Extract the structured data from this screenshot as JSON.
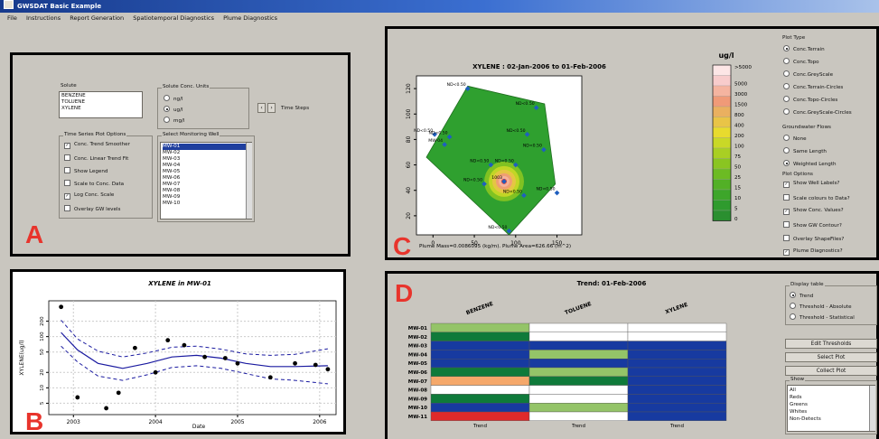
{
  "window": {
    "title": "GWSDAT Basic Example"
  },
  "menu": [
    "File",
    "Instructions",
    "Report Generation",
    "Spatiotemporal Diagnostics",
    "Plume Diagnostics"
  ],
  "panel_letters": {
    "a": "A",
    "b": "B",
    "c": "C",
    "d": "D"
  },
  "panelA": {
    "solute_caption": "Solute",
    "solutes": [
      "BENZENE",
      "TOLUENE",
      "XYLENE"
    ],
    "units_caption": "Solute Conc. Units",
    "units": [
      "ng/l",
      "ug/l",
      "mg/l"
    ],
    "selected_unit": "ug/l",
    "time_steps_label": "Time Steps",
    "ts_caption": "Time Series Plot Options",
    "ts_options": [
      {
        "label": "Conc. Trend Smoother",
        "checked": true
      },
      {
        "label": "Conc. Linear Trend Fit",
        "checked": false
      },
      {
        "label": "Show Legend",
        "checked": false
      },
      {
        "label": "Scale to Conc. Data",
        "checked": false
      },
      {
        "label": "Log Conc. Scale",
        "checked": true
      },
      {
        "label": "Overlay GW levels",
        "checked": false
      }
    ],
    "wells_caption": "Select Monitoring Well",
    "wells": [
      "MW-01",
      "MW-02",
      "MW-03",
      "MW-04",
      "MW-05",
      "MW-06",
      "MW-07",
      "MW-08",
      "MW-09",
      "MW-10"
    ],
    "selected_well": "MW-01"
  },
  "panelB": {
    "title": "XYLENE in MW-01",
    "xlabel": "Date",
    "ylabel": "XYLENE(ug/l)"
  },
  "panelC": {
    "title": "XYLENE : 02-Jan-2006 to 01-Feb-2006",
    "footer": "Plume Mass=0.0086095 (kg/m).  Plume Area=626.66 (m^2)",
    "legend_unit": "ug/l",
    "plot_type_caption": "Plot Type",
    "plot_types": [
      "Conc.Terrain",
      "Conc.Topo",
      "Conc.GreyScale",
      "Conc.Terrain-Circles",
      "Conc.Topo-Circles",
      "Conc.GreyScale-Circles"
    ],
    "selected_plot_type": "Conc.Terrain",
    "gw_caption": "Groundwater Flows",
    "gw_options": [
      "None",
      "Same Length",
      "Weighted Length"
    ],
    "selected_gw": "Weighted Length",
    "plot_opts_caption": "Plot Options",
    "plot_options": [
      {
        "label": "Show Well Labels?",
        "checked": true
      },
      {
        "label": "Scale colours to Data?",
        "checked": false
      },
      {
        "label": "Show Conc. Values?",
        "checked": true
      },
      {
        "label": "Show GW Contour?",
        "checked": false
      },
      {
        "label": "Overlay ShapeFiles?",
        "checked": false
      },
      {
        "label": "Plume Diagnostics?",
        "checked": true
      }
    ]
  },
  "panelD": {
    "title": "Trend: 01-Feb-2006",
    "display_caption": "Display table",
    "display_options": [
      "Trend",
      "Threshold - Absolute",
      "Threshold - Statistical"
    ],
    "selected_display": "Trend",
    "buttons": [
      "Edit Thresholds",
      "Select Plot",
      "Collect Plot"
    ],
    "show_caption": "Show",
    "show_items": [
      "All",
      "Reds",
      "Greens",
      "Whites",
      "Non-Detects"
    ]
  },
  "colors": {
    "accent_letter": "#e8342c",
    "plot_line": "#1a1aa0",
    "well_marker": "#1f5fbf",
    "plume_green": "#2fa02f"
  },
  "chart_data": [
    {
      "type": "scatter",
      "title": "XYLENE in MW-01",
      "xlabel": "Date",
      "ylabel": "XYLENE(ug/l)",
      "log_y": true,
      "xlim": [
        2002.7,
        2006.2
      ],
      "ylim": [
        3,
        500
      ],
      "x_ticks": [
        "2003",
        "2004",
        "2005",
        "2006"
      ],
      "y_ticks": [
        "5",
        "10",
        "20",
        "50",
        "100",
        "200"
      ],
      "points": [
        [
          2002.85,
          380
        ],
        [
          2003.05,
          6.5
        ],
        [
          2003.4,
          4
        ],
        [
          2003.55,
          8
        ],
        [
          2003.75,
          60
        ],
        [
          2004.0,
          20
        ],
        [
          2004.15,
          85
        ],
        [
          2004.35,
          68
        ],
        [
          2004.6,
          40
        ],
        [
          2004.85,
          38
        ],
        [
          2005.0,
          30
        ],
        [
          2005.4,
          16
        ],
        [
          2005.7,
          30
        ],
        [
          2005.95,
          28
        ],
        [
          2006.1,
          23
        ]
      ],
      "smoother": [
        [
          2002.85,
          120
        ],
        [
          2003.05,
          55
        ],
        [
          2003.3,
          30
        ],
        [
          2003.6,
          24
        ],
        [
          2003.9,
          30
        ],
        [
          2004.2,
          40
        ],
        [
          2004.5,
          43
        ],
        [
          2004.8,
          38
        ],
        [
          2005.1,
          30
        ],
        [
          2005.4,
          26
        ],
        [
          2005.7,
          26
        ],
        [
          2006.1,
          27
        ]
      ],
      "upper_band": [
        [
          2002.85,
          210
        ],
        [
          2003.05,
          90
        ],
        [
          2003.3,
          52
        ],
        [
          2003.6,
          40
        ],
        [
          2003.9,
          48
        ],
        [
          2004.2,
          62
        ],
        [
          2004.5,
          65
        ],
        [
          2004.8,
          57
        ],
        [
          2005.1,
          46
        ],
        [
          2005.4,
          43
        ],
        [
          2005.7,
          45
        ],
        [
          2006.1,
          58
        ]
      ],
      "lower_band": [
        [
          2002.85,
          65
        ],
        [
          2003.05,
          32
        ],
        [
          2003.3,
          17
        ],
        [
          2003.6,
          14
        ],
        [
          2003.9,
          18
        ],
        [
          2004.2,
          25
        ],
        [
          2004.5,
          27
        ],
        [
          2004.8,
          24
        ],
        [
          2005.1,
          19
        ],
        [
          2005.4,
          15
        ],
        [
          2005.7,
          14
        ],
        [
          2006.1,
          12
        ]
      ]
    },
    {
      "type": "heatmap",
      "title": "XYLENE : 02-Jan-2006 to 01-Feb-2006",
      "xlim": [
        -20,
        180
      ],
      "ylim": [
        5,
        130
      ],
      "x_ticks": [
        "0",
        "50",
        "100",
        "150"
      ],
      "y_ticks": [
        "20",
        "40",
        "60",
        "80",
        "100",
        "120"
      ],
      "legend_unit": "ug/l",
      "legend_levels": [
        ">5000",
        "5000",
        "3000",
        "1500",
        "800",
        "400",
        "200",
        "100",
        "75",
        "50",
        "25",
        "15",
        "10",
        "5",
        "0"
      ],
      "legend_colors": [
        "#fde6e6",
        "#f8cccc",
        "#f5b4a0",
        "#f09a78",
        "#eab060",
        "#e9c447",
        "#e8db2e",
        "#c9d827",
        "#a9cf23",
        "#8ac521",
        "#6cbb23",
        "#52b026",
        "#3da62a",
        "#2f9b2e",
        "#2a8f30"
      ],
      "plume_polygon": [
        [
          42,
          122
        ],
        [
          135,
          108
        ],
        [
          148,
          45
        ],
        [
          92,
          5
        ],
        [
          -8,
          66
        ]
      ],
      "wells": [
        {
          "x": 42,
          "y": 120,
          "label": "ND<0.50"
        },
        {
          "x": 125,
          "y": 105,
          "label": "ND<0.50"
        },
        {
          "x": 2,
          "y": 84,
          "label": "ND<0.50"
        },
        {
          "x": 20,
          "y": 82,
          "label": "ND<0.50"
        },
        {
          "x": 14,
          "y": 76,
          "label": "MW-04"
        },
        {
          "x": 114,
          "y": 84,
          "label": "ND<0.50"
        },
        {
          "x": 134,
          "y": 72,
          "label": "ND<0.50"
        },
        {
          "x": 70,
          "y": 60,
          "label": "ND<0.50"
        },
        {
          "x": 100,
          "y": 60,
          "label": "ND<0.50"
        },
        {
          "x": 86,
          "y": 47,
          "label": "1003"
        },
        {
          "x": 62,
          "y": 45,
          "label": "ND<0.50"
        },
        {
          "x": 110,
          "y": 36,
          "label": "ND<0.50"
        },
        {
          "x": 150,
          "y": 38,
          "label": "ND<0.50"
        },
        {
          "x": 92,
          "y": 8,
          "label": "ND<0.50"
        }
      ]
    },
    {
      "type": "table",
      "title": "Trend: 01-Feb-2006",
      "columns": [
        "BENZENE",
        "TOLUENE",
        "XYLENE"
      ],
      "rows": [
        "MW-01",
        "MW-02",
        "MW-03",
        "MW-04",
        "MW-05",
        "MW-06",
        "MW-07",
        "MW-08",
        "MW-09",
        "MW-10",
        "MW-11"
      ],
      "footer": [
        "Trend",
        "Trend",
        "Trend"
      ],
      "cells": [
        [
          "#94c468",
          "#ffffff",
          "#ffffff"
        ],
        [
          "#0f7a3a",
          "#ffffff",
          "#ffffff"
        ],
        [
          "#173aa0",
          "#173aa0",
          "#173aa0"
        ],
        [
          "#173aa0",
          "#94c468",
          "#173aa0"
        ],
        [
          "#173aa0",
          "#173aa0",
          "#173aa0"
        ],
        [
          "#0f7a3a",
          "#94c468",
          "#173aa0"
        ],
        [
          "#f5a86a",
          "#0f7a3a",
          "#173aa0"
        ],
        [
          "#ffffff",
          "#ffffff",
          "#173aa0"
        ],
        [
          "#0f7a3a",
          "#ffffff",
          "#173aa0"
        ],
        [
          "#173aa0",
          "#94c468",
          "#173aa0"
        ],
        [
          "#e02a2a",
          "#ffffff",
          "#173aa0"
        ]
      ]
    }
  ]
}
